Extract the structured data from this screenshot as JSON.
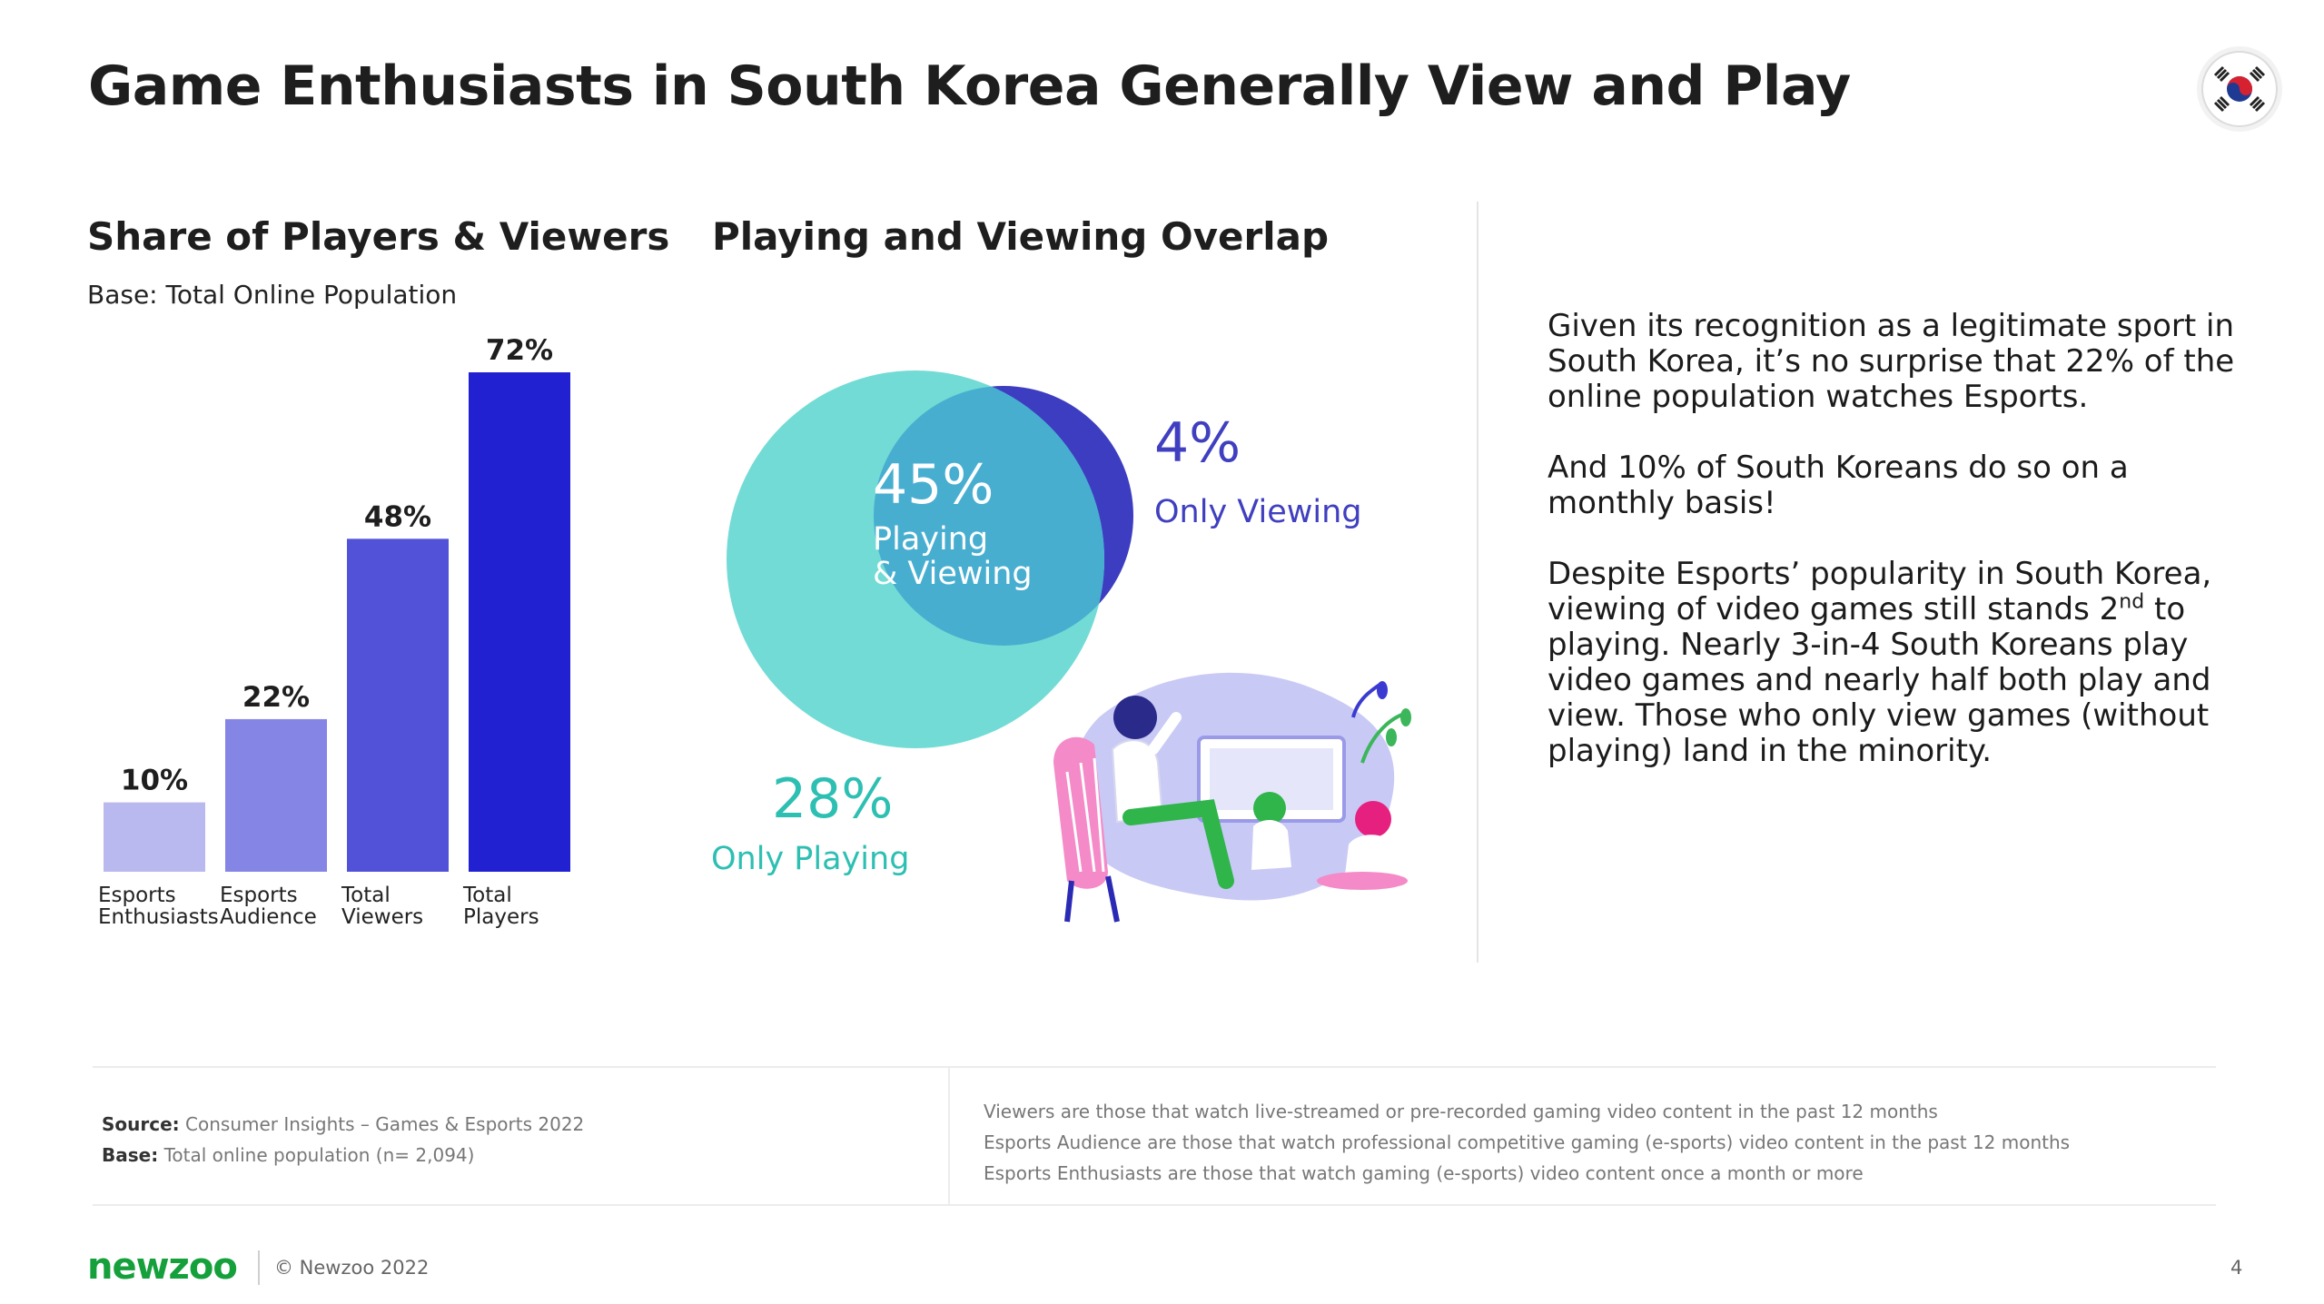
{
  "header": {
    "title": "Game Enthusiasts in South Korea Generally View and Play",
    "flag_icon": "south-korea-flag-icon"
  },
  "share_section": {
    "title": "Share of Players & Viewers",
    "base_label": "Base: Total Online Population"
  },
  "overlap_section": {
    "title": "Playing and Viewing Overlap"
  },
  "chart_data": [
    {
      "type": "bar",
      "title": "Share of Players & Viewers",
      "subtitle": "Base: Total Online Population",
      "categories": [
        [
          "Esports",
          "Enthusiasts"
        ],
        [
          "Esports",
          "Audience"
        ],
        [
          "Total",
          "Viewers"
        ],
        [
          "Total",
          "Players"
        ]
      ],
      "values": [
        10,
        22,
        48,
        72
      ],
      "value_labels": [
        "10%",
        "22%",
        "48%",
        "72%"
      ],
      "colors": [
        "#b9b9ef",
        "#8585e6",
        "#5252d9",
        "#2121d2"
      ],
      "ylim": [
        0,
        72
      ],
      "grid": false,
      "legend": "none"
    },
    {
      "type": "venn",
      "title": "Playing and Viewing Overlap",
      "segments": [
        {
          "name": "Playing & Viewing",
          "lines": [
            "Playing",
            "& Viewing"
          ],
          "value": 45,
          "label": "45%",
          "color": "#ffffff"
        },
        {
          "name": "Only Viewing",
          "lines": [
            "Only Viewing"
          ],
          "value": 4,
          "label": "4%",
          "color": "#3f3fc0"
        },
        {
          "name": "Only Playing",
          "lines": [
            "Only Playing"
          ],
          "value": 28,
          "label": "28%",
          "color": "#2ebfb3"
        }
      ],
      "circle_colors": {
        "playing": "#72dbd5",
        "viewing": "#3d3dc1",
        "overlap": "#48aed0"
      }
    }
  ],
  "narrative": {
    "p1": "Given its recognition as a legitimate sport in South Korea, it’s no surprise that 22% of the online population watches Esports.",
    "p2": "And 10% of South Koreans do so on a monthly basis!",
    "p3_a": "Despite Esports’ popularity in South Korea, viewing of video games still stands 2",
    "p3_sup": "nd",
    "p3_b": " to playing. Nearly 3-in-4 South Koreans play video games and nearly half both play and view. Those who only view games (without playing) land in the minority."
  },
  "footer": {
    "source_label": "Source:",
    "source_text": " Consumer Insights – Games & Esports 2022",
    "base_label": "Base:",
    "base_text": " Total online population (n= 2,094)",
    "definitions": [
      "Viewers are those that watch live-streamed or pre-recorded gaming video content in the past 12 months",
      "Esports Audience are those that watch professional competitive gaming (e-sports) video content in the past 12 months",
      "Esports Enthusiasts are those that watch gaming (e-sports) video content once a month or more"
    ],
    "logo": "newzoo",
    "copyright": "© Newzoo 2022",
    "page_number": "4"
  }
}
